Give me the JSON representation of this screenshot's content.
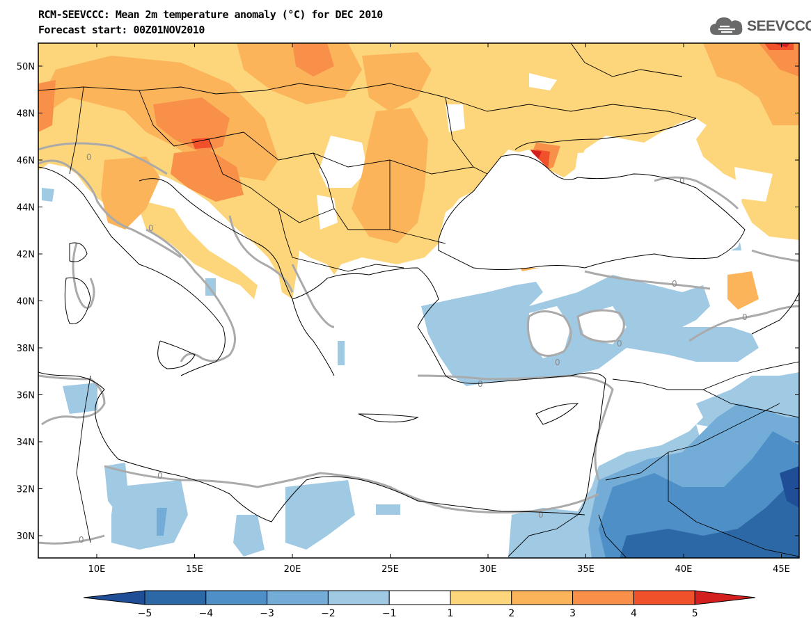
{
  "header": {
    "title": "RCM-SEEVCCC: Mean 2m temperature anomaly (°C) for DEC 2010",
    "subtitle": "Forecast start: 00Z01NOV2010",
    "logo_text": "SEEVCCC"
  },
  "map": {
    "lat_labels": [
      "50N",
      "48N",
      "46N",
      "44N",
      "42N",
      "40N",
      "38N",
      "36N",
      "34N",
      "32N",
      "30N"
    ],
    "lon_labels": [
      "10E",
      "15E",
      "20E",
      "25E",
      "30E",
      "35E",
      "40E",
      "45E"
    ],
    "contour_label": "0",
    "colors": {
      "c_m5": "#1f4e96",
      "c_m4": "#2d68a6",
      "c_m3": "#4d8fc6",
      "c_m2": "#73acd7",
      "c_m1": "#a0c9e4",
      "c_0": "#ffffff",
      "c_1": "#fdd57a",
      "c_2": "#fbb45a",
      "c_3": "#f8904a",
      "c_4": "#f0502a",
      "c_5": "#d41f1f"
    }
  },
  "colorbar": {
    "ticks": [
      "−5",
      "−4",
      "−3",
      "−2",
      "−1",
      "1",
      "2",
      "3",
      "4",
      "5"
    ],
    "colors": [
      "#1f4e96",
      "#2d68a6",
      "#4d8fc6",
      "#73acd7",
      "#a0c9e4",
      "#ffffff",
      "#fdd57a",
      "#fbb45a",
      "#f8904a",
      "#f0502a",
      "#d41f1f"
    ]
  }
}
